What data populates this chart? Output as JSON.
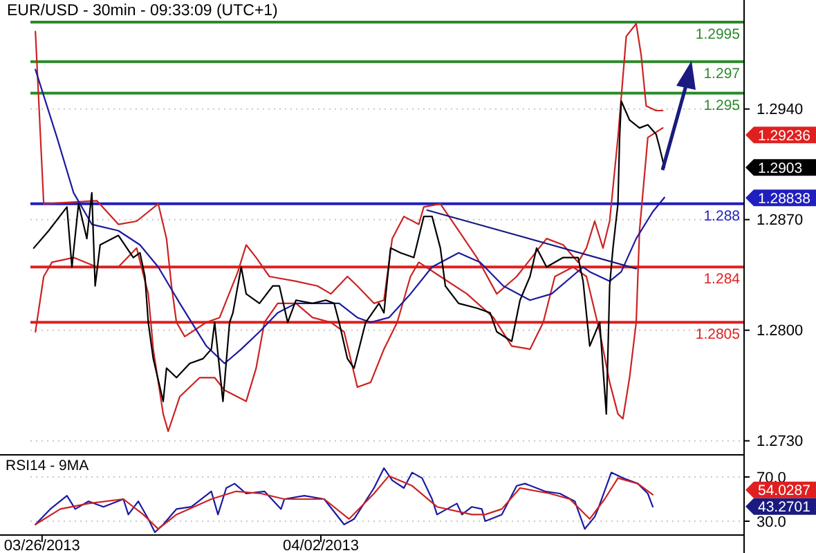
{
  "chart_data": [
    {
      "type": "line",
      "title": "EUR/USD - 30min - 09:33:09 (UTC+1)",
      "xlim": [
        "2013-03-25T17:00",
        "2013-04-12T15:00"
      ],
      "ylim": [
        1.2729,
        1.3009
      ],
      "yticks": [
        {
          "value": 1.294,
          "label": "1.2940"
        },
        {
          "value": 1.287,
          "label": "1.2870"
        },
        {
          "value": 1.28,
          "label": "1.2800"
        },
        {
          "value": 1.273,
          "label": "1.2730"
        }
      ],
      "tick_labels": "y",
      "grid": "y",
      "marker": "none",
      "series": [
        {
          "color": "#cc2222",
          "x": [
            "2013-03-25T20:00",
            "2013-03-26T01:00",
            "2013-03-27T09:00",
            "2013-03-27T22:00",
            "2013-03-28T09:00",
            "2013-03-28T22:00",
            "2013-03-29T03:00",
            "2013-03-29T06:00",
            "2013-03-29T09:00",
            "2013-03-29T14:00",
            "2013-03-30T03:00",
            "2013-03-30T11:00",
            "2013-03-30T22:00",
            "2013-03-31T03:00",
            "2013-03-31T09:00",
            "2013-03-31T17:00",
            "2013-04-01T09:00",
            "2013-04-01T22:00",
            "2013-04-02T06:00",
            "2013-04-02T16:00",
            "2013-04-02T22:00",
            "2013-04-03T08:00",
            "2013-04-03T14:00",
            "2013-04-03T19:00",
            "2013-04-04T02:00",
            "2013-04-04T11:00",
            "2013-04-04T14:00",
            "2013-04-05T00:00",
            "2013-04-05T11:00",
            "2013-04-05T22:00",
            "2013-04-06T10:00",
            "2013-04-06T22:00",
            "2013-04-07T16:00",
            "2013-04-08T02:00",
            "2013-04-08T11:00",
            "2013-04-08T16:00",
            "2013-04-08T21:00",
            "2013-04-09T02:00",
            "2013-04-09T06:00",
            "2013-04-09T11:00",
            "2013-04-09T16:00",
            "2013-04-09T22:00",
            "2013-04-10T01:00",
            "2013-04-10T04:00",
            "2013-04-10T10:00",
            "2013-04-10T14:00"
          ],
          "values": [
            1.2989,
            1.288,
            1.2882,
            1.2867,
            1.2869,
            1.288,
            1.2858,
            1.2828,
            1.2805,
            1.2796,
            1.2805,
            1.2808,
            1.2837,
            1.2854,
            1.2846,
            1.2834,
            1.2831,
            1.2828,
            1.2823,
            1.2834,
            1.2828,
            1.2817,
            1.2819,
            1.2858,
            1.2872,
            1.2867,
            1.2878,
            1.288,
            1.2863,
            1.2846,
            1.2823,
            1.2834,
            1.2858,
            1.2854,
            1.2843,
            1.2852,
            1.2869,
            1.2852,
            1.2869,
            1.2922,
            1.2986,
            1.2994,
            1.2974,
            1.2942,
            1.2939,
            1.2939
          ]
        },
        {
          "color": "#cc2222",
          "x": [
            "2013-03-25T20:00",
            "2013-03-26T01:00",
            "2013-03-26T06:00",
            "2013-03-26T19:00",
            "2013-03-27T09:00",
            "2013-03-27T22:00",
            "2013-03-28T09:00",
            "2013-03-28T16:00",
            "2013-03-28T19:00",
            "2013-03-29T01:00",
            "2013-03-29T04:00",
            "2013-03-29T11:00",
            "2013-03-29T23:00",
            "2013-03-30T08:00",
            "2013-03-30T14:00",
            "2013-03-31T03:00",
            "2013-03-31T09:00",
            "2013-03-31T14:00",
            "2013-03-31T22:00",
            "2013-04-01T09:00",
            "2013-04-01T19:00",
            "2013-04-02T06:00",
            "2013-04-02T14:00",
            "2013-04-02T22:00",
            "2013-04-03T06:00",
            "2013-04-03T14:00",
            "2013-04-03T22:00",
            "2013-04-04T06:00",
            "2013-04-04T11:00",
            "2013-04-05T00:00",
            "2013-04-05T16:00",
            "2013-04-06T08:00",
            "2013-04-06T19:00",
            "2013-04-07T06:00",
            "2013-04-07T14:00",
            "2013-04-07T21:00",
            "2013-04-08T08:00",
            "2013-04-08T16:00",
            "2013-04-09T00:00",
            "2013-04-09T06:00",
            "2013-04-09T11:00",
            "2013-04-09T14:00",
            "2013-04-09T18:00",
            "2013-04-09T22:00",
            "2013-04-10T00:00",
            "2013-04-10T05:00",
            "2013-04-10T14:00"
          ],
          "values": [
            1.2799,
            1.2834,
            1.2843,
            1.2846,
            1.284,
            1.284,
            1.2852,
            1.2823,
            1.2788,
            1.2747,
            1.2736,
            1.2758,
            1.277,
            1.277,
            1.2762,
            1.2755,
            1.2776,
            1.2805,
            1.2817,
            1.2817,
            1.2808,
            1.2805,
            1.2799,
            1.2764,
            1.2767,
            1.2788,
            1.2805,
            1.2834,
            1.2843,
            1.2834,
            1.2823,
            1.2808,
            1.279,
            1.2788,
            1.2805,
            1.2834,
            1.284,
            1.2834,
            1.2799,
            1.2767,
            1.2747,
            1.2744,
            1.277,
            1.2805,
            1.2863,
            1.2922,
            1.2928
          ]
        },
        {
          "color": "#1a1aa0",
          "x": [
            "2013-03-25T20:00",
            "2013-03-26T09:00",
            "2013-03-26T19:00",
            "2013-03-27T06:00",
            "2013-03-27T22:00",
            "2013-03-28T11:00",
            "2013-03-28T22:00",
            "2013-03-29T11:00",
            "2013-03-30T03:00",
            "2013-03-30T14:00",
            "2013-03-31T00:00",
            "2013-03-31T11:00",
            "2013-03-31T22:00",
            "2013-04-01T09:00",
            "2013-04-02T01:00",
            "2013-04-02T11:00",
            "2013-04-02T22:00",
            "2013-04-03T06:00",
            "2013-04-03T17:00",
            "2013-04-04T06:00",
            "2013-04-04T19:00",
            "2013-04-05T11:00",
            "2013-04-06T00:00",
            "2013-04-06T14:00",
            "2013-04-07T06:00",
            "2013-04-07T19:00",
            "2013-04-08T14:00",
            "2013-04-08T18:00",
            "2013-04-09T06:00",
            "2013-04-09T13:00",
            "2013-04-09T22:00",
            "2013-04-10T08:00",
            "2013-04-10T15:00"
          ],
          "values": [
            1.2965,
            1.2922,
            1.2887,
            1.2867,
            1.2863,
            1.2854,
            1.284,
            1.2817,
            1.279,
            1.2779,
            1.2788,
            1.2799,
            1.2811,
            1.2817,
            1.2817,
            1.2817,
            1.2808,
            1.2805,
            1.2808,
            1.2823,
            1.284,
            1.2849,
            1.2843,
            1.2828,
            1.2819,
            1.2823,
            1.284,
            1.2837,
            1.2831,
            1.2837,
            1.2858,
            1.2875,
            1.2884
          ]
        },
        {
          "color": "#000000",
          "x": [
            "2013-03-25T19:00",
            "2013-03-26T04:00",
            "2013-03-26T15:00",
            "2013-03-26T18:00",
            "2013-03-26T22:00",
            "2013-03-27T03:00",
            "2013-03-27T06:00",
            "2013-03-27T08:00",
            "2013-03-27T11:00",
            "2013-03-27T22:00",
            "2013-03-28T07:00",
            "2013-03-28T11:00",
            "2013-03-28T14:00",
            "2013-03-28T16:00",
            "2013-03-28T19:00",
            "2013-03-29T01:00",
            "2013-03-29T03:00",
            "2013-03-29T09:00",
            "2013-03-29T17:00",
            "2013-03-30T01:00",
            "2013-03-30T06:00",
            "2013-03-30T08:00",
            "2013-03-30T13:00",
            "2013-03-30T17:00",
            "2013-03-30T19:00",
            "2013-03-31T00:00",
            "2013-03-31T03:00",
            "2013-03-31T11:00",
            "2013-03-31T19:00",
            "2013-03-31T23:00",
            "2013-04-01T04:00",
            "2013-04-01T09:00",
            "2013-04-01T19:00",
            "2013-04-02T03:00",
            "2013-04-02T08:00",
            "2013-04-02T11:00",
            "2013-04-02T16:00",
            "2013-04-02T20:00",
            "2013-04-03T03:00",
            "2013-04-03T11:00",
            "2013-04-03T14:00",
            "2013-04-03T18:00",
            "2013-04-04T00:00",
            "2013-04-04T08:00",
            "2013-04-04T14:00",
            "2013-04-04T19:00",
            "2013-04-05T00:00",
            "2013-04-05T03:00",
            "2013-04-05T11:00",
            "2013-04-05T22:00",
            "2013-04-06T06:00",
            "2013-04-06T10:00",
            "2013-04-06T19:00",
            "2013-04-07T00:00",
            "2013-04-07T06:00",
            "2013-04-07T10:00",
            "2013-04-07T16:00",
            "2013-04-08T02:00",
            "2013-04-08T11:00",
            "2013-04-08T14:00",
            "2013-04-08T18:00",
            "2013-04-09T00:00",
            "2013-04-09T04:00",
            "2013-04-09T06:00",
            "2013-04-09T08:00",
            "2013-04-09T11:00",
            "2013-04-09T12:00",
            "2013-04-09T13:00",
            "2013-04-09T18:00",
            "2013-04-10T00:00",
            "2013-04-10T05:00",
            "2013-04-10T10:00",
            "2013-04-10T12:00",
            "2013-04-10T15:00"
          ],
          "values": [
            1.2852,
            1.2863,
            1.2878,
            1.284,
            1.288,
            1.2858,
            1.2887,
            1.2828,
            1.2854,
            1.286,
            1.2846,
            1.2849,
            1.2834,
            1.2805,
            1.2782,
            1.2755,
            1.2776,
            1.277,
            1.2779,
            1.2782,
            1.2788,
            1.2805,
            1.2755,
            1.2805,
            1.2811,
            1.284,
            1.2823,
            1.2817,
            1.2828,
            1.2828,
            1.2805,
            1.2819,
            1.2817,
            1.2819,
            1.2817,
            1.2805,
            1.2782,
            1.2776,
            1.2805,
            1.2817,
            1.2811,
            1.2852,
            1.2849,
            1.2846,
            1.2872,
            1.2872,
            1.2852,
            1.2828,
            1.2817,
            1.2814,
            1.2811,
            1.2799,
            1.2793,
            1.2819,
            1.2834,
            1.2852,
            1.284,
            1.2846,
            1.2846,
            1.2831,
            1.279,
            1.2805,
            1.2747,
            1.2828,
            1.2852,
            1.288,
            1.2922,
            1.2945,
            1.2933,
            1.2928,
            1.293,
            1.2924,
            1.2916,
            1.2903
          ]
        },
        {
          "color": "#1a1a80",
          "x": [
            "2013-04-04T16:00",
            "2013-04-09T22:00"
          ],
          "values": [
            1.2876,
            1.2839
          ]
        }
      ],
      "ref_lines": [
        {
          "axis": "y",
          "value": 1.2995,
          "label": "1.2995",
          "color": "#2a8a2a"
        },
        {
          "axis": "y",
          "value": 1.297,
          "label": "1.297",
          "color": "#2a8a2a"
        },
        {
          "axis": "y",
          "value": 1.295,
          "label": "1.295",
          "color": "#2a8a2a"
        },
        {
          "axis": "y",
          "value": 1.288,
          "label": "1.288",
          "color": "#1f1fbf"
        },
        {
          "axis": "y",
          "value": 1.284,
          "label": "1.284",
          "color": "#e02020"
        },
        {
          "axis": "y",
          "value": 1.2805,
          "label": "1.2805",
          "color": "#e02020"
        }
      ],
      "annotations": [
        "1.29236",
        "1.2903",
        "1.28838"
      ]
    },
    {
      "type": "line",
      "title": "RSI14 - 9MA",
      "xlim": [
        "2013-03-25T17:00",
        "2013-04-12T15:00"
      ],
      "xticks": [
        {
          "value": "2013-03-26",
          "label": "03/26/2013"
        },
        {
          "value": "2013-04-02",
          "label": "04/02/2013"
        }
      ],
      "ylim": [
        17.5,
        90
      ],
      "yticks": [
        {
          "value": 70,
          "label": "70.0"
        },
        {
          "value": 30,
          "label": "30.0"
        }
      ],
      "grid": "y",
      "marker": "none",
      "series": [
        {
          "color": "#1a1aa0",
          "x": [
            "2013-03-25T20:00",
            "2013-03-26T05:00",
            "2013-03-26T15:00",
            "2013-03-26T20:00",
            "2013-03-27T04:00",
            "2013-03-27T13:00",
            "2013-03-28T01:00",
            "2013-03-28T04:00",
            "2013-03-28T10:00",
            "2013-03-28T16:00",
            "2013-03-28T20:00",
            "2013-03-29T01:00",
            "2013-03-29T09:00",
            "2013-03-29T18:00",
            "2013-03-30T06:00",
            "2013-03-30T10:00",
            "2013-03-30T15:00",
            "2013-03-30T20:00",
            "2013-03-31T03:00",
            "2013-03-31T14:00",
            "2013-04-01T00:00",
            "2013-04-01T02:00",
            "2013-04-01T14:00",
            "2013-04-02T02:00",
            "2013-04-02T14:00",
            "2013-04-02T20:00",
            "2013-04-03T08:00",
            "2013-04-03T14:00",
            "2013-04-03T19:00",
            "2013-04-04T02:00",
            "2013-04-04T07:00",
            "2013-04-04T13:00",
            "2013-04-04T19:00",
            "2013-04-04T22:00",
            "2013-04-05T10:00",
            "2013-04-05T13:00",
            "2013-04-05T19:00",
            "2013-04-06T01:00",
            "2013-04-06T03:00",
            "2013-04-06T13:00",
            "2013-04-06T22:00",
            "2013-04-07T03:00",
            "2013-04-07T15:00",
            "2013-04-08T00:00",
            "2013-04-08T09:00",
            "2013-04-08T15:00",
            "2013-04-08T21:00",
            "2013-04-08T23:00",
            "2013-04-09T07:00",
            "2013-04-09T14:00",
            "2013-04-09T23:00",
            "2013-04-10T05:00",
            "2013-04-10T08:00"
          ],
          "values": [
            27,
            41,
            53,
            41,
            48,
            43,
            50,
            36,
            48,
            32,
            20,
            27,
            41,
            43,
            57,
            36,
            60,
            64,
            55,
            57,
            41,
            50,
            53,
            50,
            27,
            32,
            60,
            78,
            67,
            60,
            74,
            69,
            50,
            36,
            46,
            36,
            43,
            41,
            30,
            36,
            62,
            64,
            57,
            55,
            48,
            23,
            34,
            41,
            74,
            69,
            64,
            55,
            43
          ]
        },
        {
          "color": "#cc2222",
          "x": [
            "2013-03-25T20:00",
            "2013-03-26T11:00",
            "2013-03-27T04:00",
            "2013-03-28T01:00",
            "2013-03-28T13:00",
            "2013-03-28T22:00",
            "2013-03-29T09:00",
            "2013-03-30T06:00",
            "2013-03-30T21:00",
            "2013-03-31T12:00",
            "2013-04-01T02:00",
            "2013-04-02T02:00",
            "2013-04-02T17:00",
            "2013-04-03T08:00",
            "2013-04-03T17:00",
            "2013-04-04T07:00",
            "2013-04-04T22:00",
            "2013-04-05T19:00",
            "2013-04-06T03:00",
            "2013-04-06T13:00",
            "2013-04-07T00:00",
            "2013-04-07T18:00",
            "2013-04-08T06:00",
            "2013-04-08T18:00",
            "2013-04-09T03:00",
            "2013-04-09T11:00",
            "2013-04-09T23:00",
            "2013-04-10T08:00"
          ],
          "values": [
            27,
            41,
            46,
            50,
            36,
            23,
            36,
            50,
            57,
            55,
            50,
            50,
            32,
            55,
            71,
            62,
            43,
            36,
            36,
            41,
            60,
            55,
            50,
            32,
            50,
            69,
            64,
            54
          ]
        }
      ],
      "annotations": [
        "54.0287",
        "43.2701"
      ]
    }
  ]
}
